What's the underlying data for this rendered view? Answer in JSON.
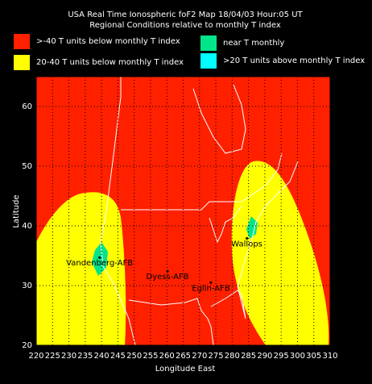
{
  "chart_data": {
    "type": "map",
    "title": "USA Real Time Ionospheric foF2 Map  18/04/03 Hour:05 UT",
    "subtitle": "Regional Conditions relative to monthly T index",
    "legend": [
      {
        "name": ">-40 T units below monthly T index",
        "color": "#ff2000"
      },
      {
        "name": "20-40 T units below monthly T index",
        "color": "#ffff00"
      },
      {
        "name": "near T monthly",
        "color": "#00e58a"
      },
      {
        "name": ">20 T units above monthly T index",
        "color": "#00ffff"
      }
    ],
    "xlabel": "Longitude East",
    "ylabel": "Latitude",
    "xlim": [
      220,
      310
    ],
    "ylim": [
      20,
      65
    ],
    "xticks": [
      220,
      225,
      230,
      235,
      240,
      245,
      250,
      255,
      260,
      265,
      270,
      275,
      280,
      285,
      290,
      295,
      300,
      305,
      310
    ],
    "yticks": [
      20,
      30,
      40,
      50,
      60
    ],
    "grid": true,
    "stations": [
      {
        "name": "Vandenberg-AFB",
        "lon": 239.4,
        "lat": 34.7
      },
      {
        "name": "Dyess-AFB",
        "lon": 260.2,
        "lat": 32.4
      },
      {
        "name": "Eglin-AFB",
        "lon": 273.5,
        "lat": 30.5
      },
      {
        "name": "Wallops",
        "lon": 284.5,
        "lat": 37.9
      }
    ]
  }
}
